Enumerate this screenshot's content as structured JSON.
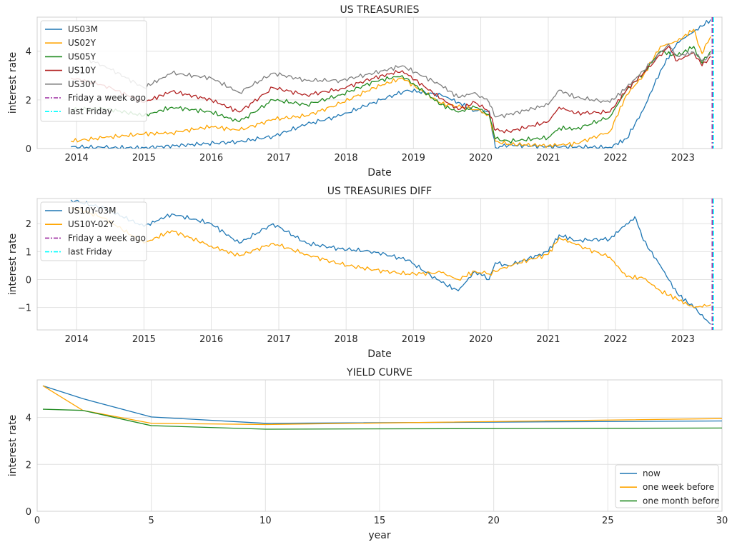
{
  "chart_data": [
    {
      "type": "line",
      "title": "US TREASURIES",
      "xlabel": "Date",
      "ylabel": "interest rate",
      "xlim": [
        "2013-06-01",
        "2023-08-01"
      ],
      "ylim": [
        0,
        5.4
      ],
      "xticks": [
        "2014",
        "2015",
        "2016",
        "2017",
        "2018",
        "2019",
        "2020",
        "2021",
        "2022",
        "2023"
      ],
      "yticks": [
        "0",
        "2",
        "4"
      ],
      "grid": true,
      "legend": "top-left",
      "series": [
        {
          "name": "US03M",
          "color": "#1f77b4",
          "points": [
            [
              "2013-12-01",
              0.07
            ],
            [
              "2014-06-01",
              0.04
            ],
            [
              "2015-01-01",
              0.03
            ],
            [
              "2015-12-01",
              0.2
            ],
            [
              "2016-06-01",
              0.28
            ],
            [
              "2016-12-01",
              0.5
            ],
            [
              "2017-06-01",
              1.0
            ],
            [
              "2017-12-01",
              1.35
            ],
            [
              "2018-06-01",
              1.9
            ],
            [
              "2018-12-01",
              2.4
            ],
            [
              "2019-06-01",
              2.2
            ],
            [
              "2019-09-01",
              1.9
            ],
            [
              "2019-12-01",
              1.55
            ],
            [
              "2020-02-15",
              1.55
            ],
            [
              "2020-03-20",
              0.05
            ],
            [
              "2020-06-01",
              0.14
            ],
            [
              "2021-01-01",
              0.08
            ],
            [
              "2021-12-01",
              0.05
            ],
            [
              "2022-03-01",
              0.4
            ],
            [
              "2022-06-01",
              1.6
            ],
            [
              "2022-09-01",
              3.2
            ],
            [
              "2022-12-01",
              4.35
            ],
            [
              "2023-03-01",
              4.8
            ],
            [
              "2023-06-01",
              5.3
            ]
          ]
        },
        {
          "name": "US02Y",
          "color": "#ffa500",
          "points": [
            [
              "2013-12-01",
              0.3
            ],
            [
              "2014-06-01",
              0.45
            ],
            [
              "2015-01-01",
              0.6
            ],
            [
              "2015-06-01",
              0.65
            ],
            [
              "2016-01-01",
              0.9
            ],
            [
              "2016-06-01",
              0.75
            ],
            [
              "2016-12-01",
              1.2
            ],
            [
              "2017-06-01",
              1.35
            ],
            [
              "2017-12-01",
              1.85
            ],
            [
              "2018-06-01",
              2.5
            ],
            [
              "2018-11-01",
              2.9
            ],
            [
              "2019-06-01",
              1.85
            ],
            [
              "2019-12-01",
              1.6
            ],
            [
              "2020-02-15",
              1.4
            ],
            [
              "2020-03-20",
              0.3
            ],
            [
              "2020-06-01",
              0.18
            ],
            [
              "2021-01-01",
              0.12
            ],
            [
              "2021-06-01",
              0.2
            ],
            [
              "2021-12-01",
              0.7
            ],
            [
              "2022-03-01",
              2.2
            ],
            [
              "2022-06-01",
              3.0
            ],
            [
              "2022-09-01",
              4.2
            ],
            [
              "2022-12-01",
              4.4
            ],
            [
              "2023-03-01",
              4.9
            ],
            [
              "2023-04-15",
              3.9
            ],
            [
              "2023-06-01",
              4.6
            ]
          ]
        },
        {
          "name": "US05Y",
          "color": "#228b22",
          "points": [
            [
              "2013-12-01",
              1.6
            ],
            [
              "2014-06-01",
              1.65
            ],
            [
              "2015-01-01",
              1.35
            ],
            [
              "2015-06-01",
              1.7
            ],
            [
              "2016-01-01",
              1.5
            ],
            [
              "2016-06-01",
              1.1
            ],
            [
              "2016-12-01",
              2.0
            ],
            [
              "2017-06-01",
              1.8
            ],
            [
              "2017-12-01",
              2.2
            ],
            [
              "2018-06-01",
              2.75
            ],
            [
              "2018-11-01",
              3.0
            ],
            [
              "2019-06-01",
              1.8
            ],
            [
              "2019-09-01",
              1.5
            ],
            [
              "2019-12-01",
              1.7
            ],
            [
              "2020-02-15",
              1.4
            ],
            [
              "2020-03-20",
              0.4
            ],
            [
              "2020-06-01",
              0.3
            ],
            [
              "2021-01-01",
              0.45
            ],
            [
              "2021-03-01",
              0.85
            ],
            [
              "2021-06-01",
              0.8
            ],
            [
              "2021-12-01",
              1.3
            ],
            [
              "2022-03-01",
              2.4
            ],
            [
              "2022-06-01",
              3.1
            ],
            [
              "2022-09-01",
              4.0
            ],
            [
              "2022-12-01",
              3.8
            ],
            [
              "2023-03-01",
              4.2
            ],
            [
              "2023-04-15",
              3.5
            ],
            [
              "2023-06-01",
              4.0
            ]
          ]
        },
        {
          "name": "US10Y",
          "color": "#b22222",
          "points": [
            [
              "2013-12-01",
              2.9
            ],
            [
              "2014-06-01",
              2.6
            ],
            [
              "2015-01-01",
              1.9
            ],
            [
              "2015-06-01",
              2.35
            ],
            [
              "2016-01-01",
              2.0
            ],
            [
              "2016-06-01",
              1.5
            ],
            [
              "2016-12-01",
              2.5
            ],
            [
              "2017-06-01",
              2.2
            ],
            [
              "2017-12-01",
              2.45
            ],
            [
              "2018-06-01",
              2.9
            ],
            [
              "2018-11-01",
              3.2
            ],
            [
              "2019-06-01",
              2.05
            ],
            [
              "2019-09-01",
              1.6
            ],
            [
              "2019-12-01",
              1.9
            ],
            [
              "2020-02-15",
              1.5
            ],
            [
              "2020-03-20",
              0.75
            ],
            [
              "2020-06-01",
              0.7
            ],
            [
              "2021-01-01",
              1.1
            ],
            [
              "2021-03-01",
              1.7
            ],
            [
              "2021-06-01",
              1.45
            ],
            [
              "2021-12-01",
              1.5
            ],
            [
              "2022-03-01",
              2.4
            ],
            [
              "2022-06-01",
              3.1
            ],
            [
              "2022-10-15",
              4.2
            ],
            [
              "2022-12-01",
              3.6
            ],
            [
              "2023-03-01",
              3.95
            ],
            [
              "2023-04-15",
              3.4
            ],
            [
              "2023-06-01",
              3.8
            ]
          ]
        },
        {
          "name": "US30Y",
          "color": "#808080",
          "points": [
            [
              "2013-12-01",
              3.9
            ],
            [
              "2014-06-01",
              3.4
            ],
            [
              "2015-01-01",
              2.5
            ],
            [
              "2015-06-01",
              3.1
            ],
            [
              "2016-01-01",
              2.9
            ],
            [
              "2016-06-01",
              2.3
            ],
            [
              "2016-12-01",
              3.1
            ],
            [
              "2017-06-01",
              2.8
            ],
            [
              "2017-12-01",
              2.8
            ],
            [
              "2018-06-01",
              3.1
            ],
            [
              "2018-11-01",
              3.4
            ],
            [
              "2019-06-01",
              2.6
            ],
            [
              "2019-09-01",
              2.1
            ],
            [
              "2019-12-01",
              2.3
            ],
            [
              "2020-02-15",
              1.9
            ],
            [
              "2020-03-20",
              1.3
            ],
            [
              "2020-06-01",
              1.4
            ],
            [
              "2021-01-01",
              1.8
            ],
            [
              "2021-03-01",
              2.4
            ],
            [
              "2021-06-01",
              2.1
            ],
            [
              "2021-12-01",
              1.9
            ],
            [
              "2022-03-01",
              2.5
            ],
            [
              "2022-06-01",
              3.2
            ],
            [
              "2022-10-15",
              4.3
            ],
            [
              "2022-12-01",
              3.8
            ],
            [
              "2023-03-01",
              3.95
            ],
            [
              "2023-04-15",
              3.6
            ],
            [
              "2023-06-01",
              3.9
            ]
          ]
        },
        {
          "name": "Friday a week ago",
          "color": "#9c2aa0",
          "style": "dashdot",
          "vline": "2023-06-09"
        },
        {
          "name": "last Friday",
          "color": "#00ffff",
          "style": "dashdot",
          "vline": "2023-06-16"
        }
      ]
    },
    {
      "type": "line",
      "title": "US TREASURIES DIFF",
      "xlabel": "Date",
      "ylabel": "interest rate",
      "xlim": [
        "2013-06-01",
        "2023-08-01"
      ],
      "ylim": [
        -1.8,
        2.9
      ],
      "xticks": [
        "2014",
        "2015",
        "2016",
        "2017",
        "2018",
        "2019",
        "2020",
        "2021",
        "2022",
        "2023"
      ],
      "yticks": [
        "−1",
        "0",
        "1",
        "2"
      ],
      "grid": true,
      "legend": "top-left",
      "series": [
        {
          "name": "US10Y-03M",
          "color": "#1f77b4",
          "points": [
            [
              "2013-12-01",
              2.85
            ],
            [
              "2014-06-01",
              2.55
            ],
            [
              "2015-01-01",
              1.9
            ],
            [
              "2015-06-01",
              2.35
            ],
            [
              "2016-01-01",
              2.0
            ],
            [
              "2016-06-01",
              1.3
            ],
            [
              "2016-12-01",
              2.0
            ],
            [
              "2017-06-01",
              1.3
            ],
            [
              "2017-12-01",
              1.1
            ],
            [
              "2018-06-01",
              1.0
            ],
            [
              "2018-12-01",
              0.7
            ],
            [
              "2019-06-01",
              -0.1
            ],
            [
              "2019-09-01",
              -0.4
            ],
            [
              "2019-12-01",
              0.3
            ],
            [
              "2020-02-15",
              0.0
            ],
            [
              "2020-03-20",
              0.6
            ],
            [
              "2020-06-01",
              0.5
            ],
            [
              "2021-01-01",
              1.0
            ],
            [
              "2021-03-01",
              1.6
            ],
            [
              "2021-06-01",
              1.4
            ],
            [
              "2021-12-01",
              1.45
            ],
            [
              "2022-03-01",
              2.0
            ],
            [
              "2022-04-15",
              2.25
            ],
            [
              "2022-06-01",
              1.4
            ],
            [
              "2022-09-01",
              0.5
            ],
            [
              "2022-12-01",
              -0.5
            ],
            [
              "2023-03-01",
              -1.0
            ],
            [
              "2023-06-01",
              -1.6
            ]
          ]
        },
        {
          "name": "US10Y-02Y",
          "color": "#ffa500",
          "points": [
            [
              "2013-12-01",
              2.6
            ],
            [
              "2014-06-01",
              2.2
            ],
            [
              "2015-01-01",
              1.3
            ],
            [
              "2015-06-01",
              1.75
            ],
            [
              "2016-01-01",
              1.2
            ],
            [
              "2016-06-01",
              0.85
            ],
            [
              "2016-12-01",
              1.3
            ],
            [
              "2017-06-01",
              0.9
            ],
            [
              "2017-12-01",
              0.55
            ],
            [
              "2018-06-01",
              0.35
            ],
            [
              "2018-12-01",
              0.2
            ],
            [
              "2019-06-01",
              0.25
            ],
            [
              "2019-09-01",
              0.0
            ],
            [
              "2019-12-01",
              0.3
            ],
            [
              "2020-02-15",
              0.2
            ],
            [
              "2020-06-01",
              0.5
            ],
            [
              "2021-01-01",
              0.9
            ],
            [
              "2021-03-01",
              1.5
            ],
            [
              "2021-06-01",
              1.25
            ],
            [
              "2021-12-01",
              0.8
            ],
            [
              "2022-03-01",
              0.1
            ],
            [
              "2022-06-01",
              0.05
            ],
            [
              "2022-09-01",
              -0.4
            ],
            [
              "2022-12-01",
              -0.7
            ],
            [
              "2023-03-01",
              -1.0
            ],
            [
              "2023-06-01",
              -0.9
            ]
          ]
        },
        {
          "name": "Friday a week ago",
          "color": "#9c2aa0",
          "style": "dashdot",
          "vline": "2023-06-09"
        },
        {
          "name": "last Friday",
          "color": "#00ffff",
          "style": "dashdot",
          "vline": "2023-06-16"
        }
      ]
    },
    {
      "type": "line",
      "title": "YIELD CURVE",
      "xlabel": "year",
      "ylabel": "interest rate",
      "xlim": [
        0,
        30
      ],
      "ylim": [
        0,
        5.6
      ],
      "xticks": [
        "0",
        "5",
        "10",
        "15",
        "20",
        "25",
        "30"
      ],
      "yticks": [
        "0",
        "2",
        "4"
      ],
      "grid": true,
      "legend": "bottom-right",
      "series": [
        {
          "name": "now",
          "color": "#1f77b4",
          "points": [
            [
              0.25,
              5.35
            ],
            [
              2,
              4.8
            ],
            [
              5,
              4.02
            ],
            [
              10,
              3.75
            ],
            [
              30,
              3.85
            ]
          ]
        },
        {
          "name": "one week before",
          "color": "#ffa500",
          "points": [
            [
              0.25,
              5.35
            ],
            [
              2,
              4.3
            ],
            [
              5,
              3.75
            ],
            [
              10,
              3.7
            ],
            [
              30,
              3.95
            ]
          ]
        },
        {
          "name": "one month before",
          "color": "#228b22",
          "points": [
            [
              0.25,
              4.35
            ],
            [
              2,
              4.3
            ],
            [
              5,
              3.65
            ],
            [
              10,
              3.5
            ],
            [
              30,
              3.55
            ]
          ]
        }
      ]
    }
  ]
}
